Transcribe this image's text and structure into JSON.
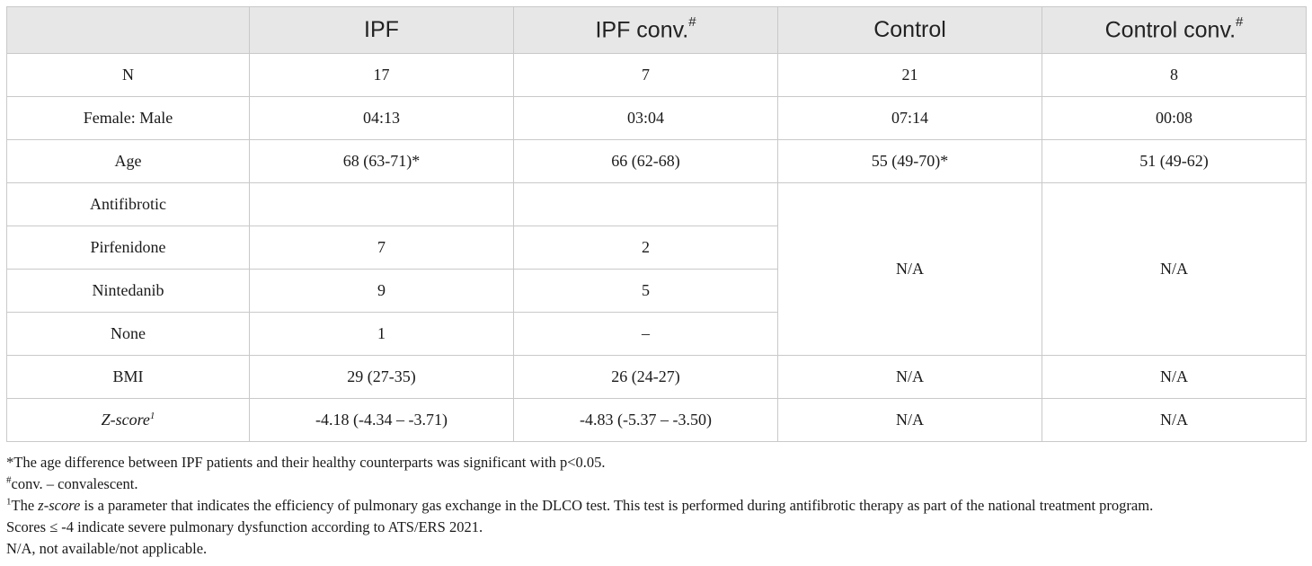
{
  "table": {
    "header": {
      "blank": "",
      "ipf": "IPF",
      "ipf_conv": "IPF conv.",
      "ipf_conv_mark": "#",
      "control": "Control",
      "control_conv": "Control conv.",
      "control_conv_mark": "#"
    },
    "rows": {
      "n": {
        "label": "N",
        "ipf": "17",
        "ipf_conv": "7",
        "control": "21",
        "control_conv": "8"
      },
      "sex": {
        "label": "Female: Male",
        "ipf": "04:13",
        "ipf_conv": "03:04",
        "control": "07:14",
        "control_conv": "00:08"
      },
      "age": {
        "label": "Age",
        "ipf": "68 (63-71)*",
        "ipf_conv": "66 (62-68)",
        "control": "55 (49-70)*",
        "control_conv": "51 (49-62)"
      },
      "antifibrotic": {
        "label": "Antifibrotic",
        "ipf": "",
        "ipf_conv": ""
      },
      "pirfenidone": {
        "label": "Pirfenidone",
        "ipf": "7",
        "ipf_conv": "2"
      },
      "nintedanib": {
        "label": "Nintedanib",
        "ipf": "9",
        "ipf_conv": "5"
      },
      "none": {
        "label": "None",
        "ipf": "1",
        "ipf_conv": "–"
      },
      "antifibrotic_control": "N/A",
      "antifibrotic_control_conv": "N/A",
      "bmi": {
        "label": "BMI",
        "ipf": "29 (27-35)",
        "ipf_conv": "26 (24-27)",
        "control": "N/A",
        "control_conv": "N/A"
      },
      "zscore": {
        "label": "Z-score",
        "label_mark": "1",
        "ipf": "-4.18 (-4.34 – -3.71)",
        "ipf_conv": "-4.83 (-5.37 – -3.50)",
        "control": "N/A",
        "control_conv": "N/A"
      }
    }
  },
  "footnotes": {
    "asterisk": "*The age difference between IPF patients and their healthy counterparts was significant with p<0.05.",
    "hash_mark": "#",
    "hash_text": "conv. – convalescent.",
    "one_mark": "1",
    "one_text_before": "The ",
    "one_text_italic": "z-score",
    "one_text_after": " is a parameter that indicates the efficiency of pulmonary gas exchange in the DLCO test. This test is performed during antifibrotic therapy as part of the national treatment program.",
    "one_text_line2": "Scores ≤ -4 indicate severe pulmonary dysfunction according to ATS/ERS 2021.",
    "na": "N/A, not available/not applicable."
  }
}
